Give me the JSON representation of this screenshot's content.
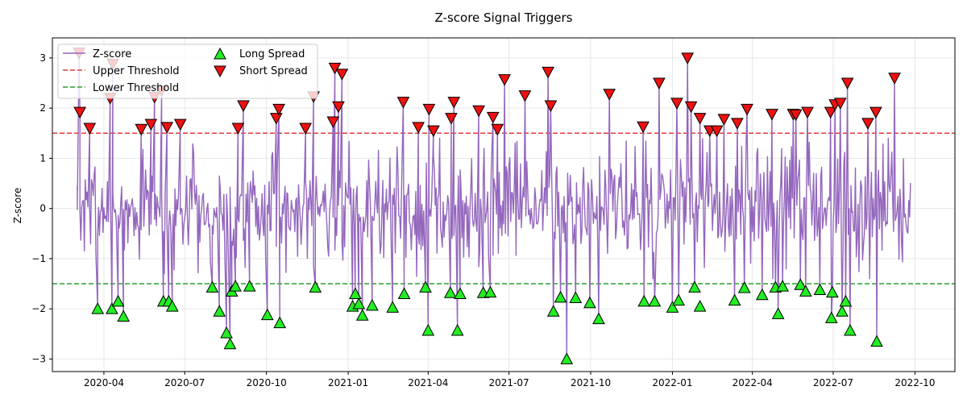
{
  "chart_data": {
    "type": "line",
    "title": "Z-score Signal Triggers",
    "xlabel": "",
    "ylabel": "Z-score",
    "xlim": [
      "2020-02-03",
      "2022-11-15"
    ],
    "ylim": [
      -3.25,
      3.4
    ],
    "x_ticks": [
      "2020-04",
      "2020-07",
      "2020-10",
      "2021-01",
      "2021-04",
      "2021-07",
      "2021-10",
      "2022-01",
      "2022-04",
      "2022-07",
      "2022-10"
    ],
    "y_ticks": [
      -3,
      -2,
      -1,
      0,
      1,
      2,
      3
    ],
    "grid": true,
    "legend_position": "top-left",
    "colors": {
      "zscore": "#9467bd",
      "upper": "#e8383d",
      "lower": "#2ca02c",
      "long_marker": "#22ee22",
      "short_marker": "#ee1111"
    },
    "series": [
      {
        "name": "Z-score",
        "kind": "line",
        "x_start": "2020-03-02",
        "x_end": "2022-09-26",
        "n_points": 940,
        "seed": 7
      },
      {
        "name": "Upper Threshold",
        "kind": "hline",
        "value": 1.5
      },
      {
        "name": "Lower Threshold",
        "kind": "hline",
        "value": -1.5
      },
      {
        "name": "Long Spread",
        "kind": "marker",
        "marker": "triangle-up",
        "points": [
          [
            "2020-03-25",
            -2.0
          ],
          [
            "2020-04-10",
            -2.0
          ],
          [
            "2020-04-17",
            -1.85
          ],
          [
            "2020-04-23",
            -2.15
          ],
          [
            "2020-06-07",
            -1.85
          ],
          [
            "2020-06-13",
            -1.85
          ],
          [
            "2020-06-17",
            -1.95
          ],
          [
            "2020-08-01",
            -1.57
          ],
          [
            "2020-08-09",
            -2.05
          ],
          [
            "2020-08-17",
            -2.48
          ],
          [
            "2020-08-21",
            -2.7
          ],
          [
            "2020-08-23",
            -1.65
          ],
          [
            "2020-08-27",
            -1.55
          ],
          [
            "2020-09-12",
            -1.55
          ],
          [
            "2020-10-02",
            -2.12
          ],
          [
            "2020-10-16",
            -2.28
          ],
          [
            "2020-11-25",
            -1.57
          ],
          [
            "2021-01-06",
            -1.95
          ],
          [
            "2021-01-09",
            -1.7
          ],
          [
            "2021-01-13",
            -1.9
          ],
          [
            "2021-01-17",
            -2.13
          ],
          [
            "2021-01-28",
            -1.93
          ],
          [
            "2021-02-20",
            -1.97
          ],
          [
            "2021-03-05",
            -1.7
          ],
          [
            "2021-03-29",
            -1.57
          ],
          [
            "2021-04-01",
            -2.43
          ],
          [
            "2021-04-26",
            -1.68
          ],
          [
            "2021-05-04",
            -2.43
          ],
          [
            "2021-05-07",
            -1.7
          ],
          [
            "2021-06-02",
            -1.68
          ],
          [
            "2021-06-10",
            -1.67
          ],
          [
            "2021-08-20",
            -2.05
          ],
          [
            "2021-08-28",
            -1.77
          ],
          [
            "2021-09-04",
            -3.0
          ],
          [
            "2021-09-14",
            -1.78
          ],
          [
            "2021-09-30",
            -1.88
          ],
          [
            "2021-10-10",
            -2.2
          ],
          [
            "2021-11-30",
            -1.85
          ],
          [
            "2021-12-12",
            -1.85
          ],
          [
            "2022-01-01",
            -1.97
          ],
          [
            "2022-01-08",
            -1.83
          ],
          [
            "2022-01-26",
            -1.57
          ],
          [
            "2022-02-01",
            -1.95
          ],
          [
            "2022-03-12",
            -1.83
          ],
          [
            "2022-03-23",
            -1.58
          ],
          [
            "2022-04-12",
            -1.72
          ],
          [
            "2022-04-27",
            -1.57
          ],
          [
            "2022-04-30",
            -2.1
          ],
          [
            "2022-05-05",
            -1.55
          ],
          [
            "2022-05-25",
            -1.52
          ],
          [
            "2022-05-31",
            -1.65
          ],
          [
            "2022-06-16",
            -1.62
          ],
          [
            "2022-06-29",
            -2.18
          ],
          [
            "2022-06-30",
            -1.67
          ],
          [
            "2022-07-11",
            -2.05
          ],
          [
            "2022-07-15",
            -1.85
          ],
          [
            "2022-07-20",
            -2.43
          ],
          [
            "2022-08-19",
            -2.65
          ]
        ]
      },
      {
        "name": "Short Spread",
        "kind": "marker",
        "marker": "triangle-down",
        "points": [
          [
            "2020-03-04",
            3.1
          ],
          [
            "2020-03-05",
            1.92
          ],
          [
            "2020-03-16",
            1.6
          ],
          [
            "2020-04-08",
            2.2
          ],
          [
            "2020-04-11",
            2.88
          ],
          [
            "2020-05-13",
            1.58
          ],
          [
            "2020-05-24",
            1.68
          ],
          [
            "2020-05-28",
            2.22
          ],
          [
            "2020-06-05",
            2.35
          ],
          [
            "2020-06-11",
            1.62
          ],
          [
            "2020-06-26",
            1.68
          ],
          [
            "2020-08-30",
            1.6
          ],
          [
            "2020-09-05",
            2.05
          ],
          [
            "2020-10-12",
            1.8
          ],
          [
            "2020-10-15",
            1.98
          ],
          [
            "2020-11-14",
            1.6
          ],
          [
            "2020-11-23",
            2.23
          ],
          [
            "2020-12-15",
            1.73
          ],
          [
            "2020-12-17",
            2.8
          ],
          [
            "2020-12-21",
            2.03
          ],
          [
            "2020-12-25",
            2.68
          ],
          [
            "2021-03-04",
            2.12
          ],
          [
            "2021-03-21",
            1.62
          ],
          [
            "2021-04-02",
            1.98
          ],
          [
            "2021-04-07",
            1.55
          ],
          [
            "2021-04-27",
            1.8
          ],
          [
            "2021-04-30",
            2.12
          ],
          [
            "2021-05-28",
            1.95
          ],
          [
            "2021-06-13",
            1.82
          ],
          [
            "2021-06-18",
            1.58
          ],
          [
            "2021-06-26",
            2.57
          ],
          [
            "2021-07-19",
            2.25
          ],
          [
            "2021-08-14",
            2.72
          ],
          [
            "2021-08-17",
            2.05
          ],
          [
            "2021-10-22",
            2.28
          ],
          [
            "2021-11-29",
            1.63
          ],
          [
            "2021-12-17",
            2.5
          ],
          [
            "2022-01-06",
            2.1
          ],
          [
            "2022-01-18",
            3.0
          ],
          [
            "2022-01-22",
            2.03
          ],
          [
            "2022-02-01",
            1.8
          ],
          [
            "2022-02-12",
            1.55
          ],
          [
            "2022-02-20",
            1.55
          ],
          [
            "2022-02-28",
            1.78
          ],
          [
            "2022-03-15",
            1.7
          ],
          [
            "2022-03-26",
            1.98
          ],
          [
            "2022-04-23",
            1.88
          ],
          [
            "2022-05-17",
            1.88
          ],
          [
            "2022-05-20",
            1.87
          ],
          [
            "2022-06-02",
            1.92
          ],
          [
            "2022-06-28",
            1.92
          ],
          [
            "2022-07-03",
            2.07
          ],
          [
            "2022-07-09",
            2.1
          ],
          [
            "2022-07-17",
            2.5
          ],
          [
            "2022-08-09",
            1.7
          ],
          [
            "2022-08-18",
            1.92
          ],
          [
            "2022-09-08",
            2.6
          ]
        ]
      }
    ]
  }
}
